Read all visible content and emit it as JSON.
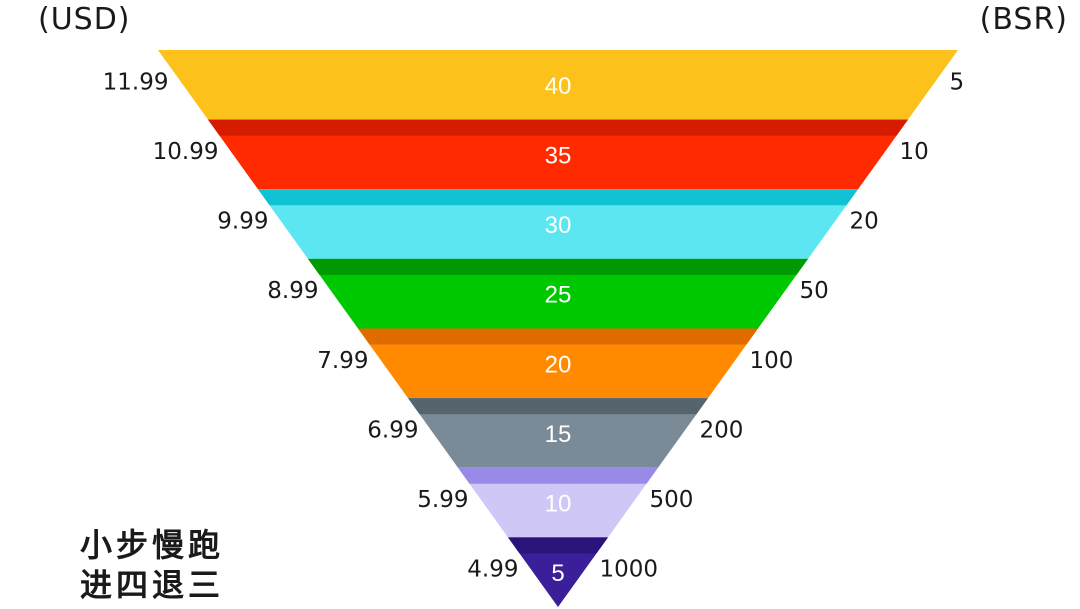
{
  "chart_data": {
    "type": "funnel",
    "left_axis_title": "(USD)",
    "right_axis_title": "(BSR)",
    "levels": [
      {
        "value": 40,
        "price": "11.99",
        "bsr": "5",
        "color": "#FCC21B",
        "top_color": "#FCC21B"
      },
      {
        "value": 35,
        "price": "10.99",
        "bsr": "10",
        "color": "#FF2A00",
        "top_color": "#D61C00"
      },
      {
        "value": 30,
        "price": "9.99",
        "bsr": "20",
        "color": "#5CE6F2",
        "top_color": "#11C2D4"
      },
      {
        "value": 25,
        "price": "8.99",
        "bsr": "50",
        "color": "#00C800",
        "top_color": "#009A00"
      },
      {
        "value": 20,
        "price": "7.99",
        "bsr": "100",
        "color": "#FF8A00",
        "top_color": "#E06C00"
      },
      {
        "value": 15,
        "price": "6.99",
        "bsr": "200",
        "color": "#7A8A96",
        "top_color": "#56646E"
      },
      {
        "value": 10,
        "price": "5.99",
        "bsr": "500",
        "color": "#CFC8F7",
        "top_color": "#9A8AE8"
      },
      {
        "value": 5,
        "price": "4.99",
        "bsr": "1000",
        "color": "#3B1E99",
        "top_color": "#2A137A"
      }
    ]
  },
  "caption": {
    "line1": "小步慢跑",
    "line2": "进四退三"
  }
}
